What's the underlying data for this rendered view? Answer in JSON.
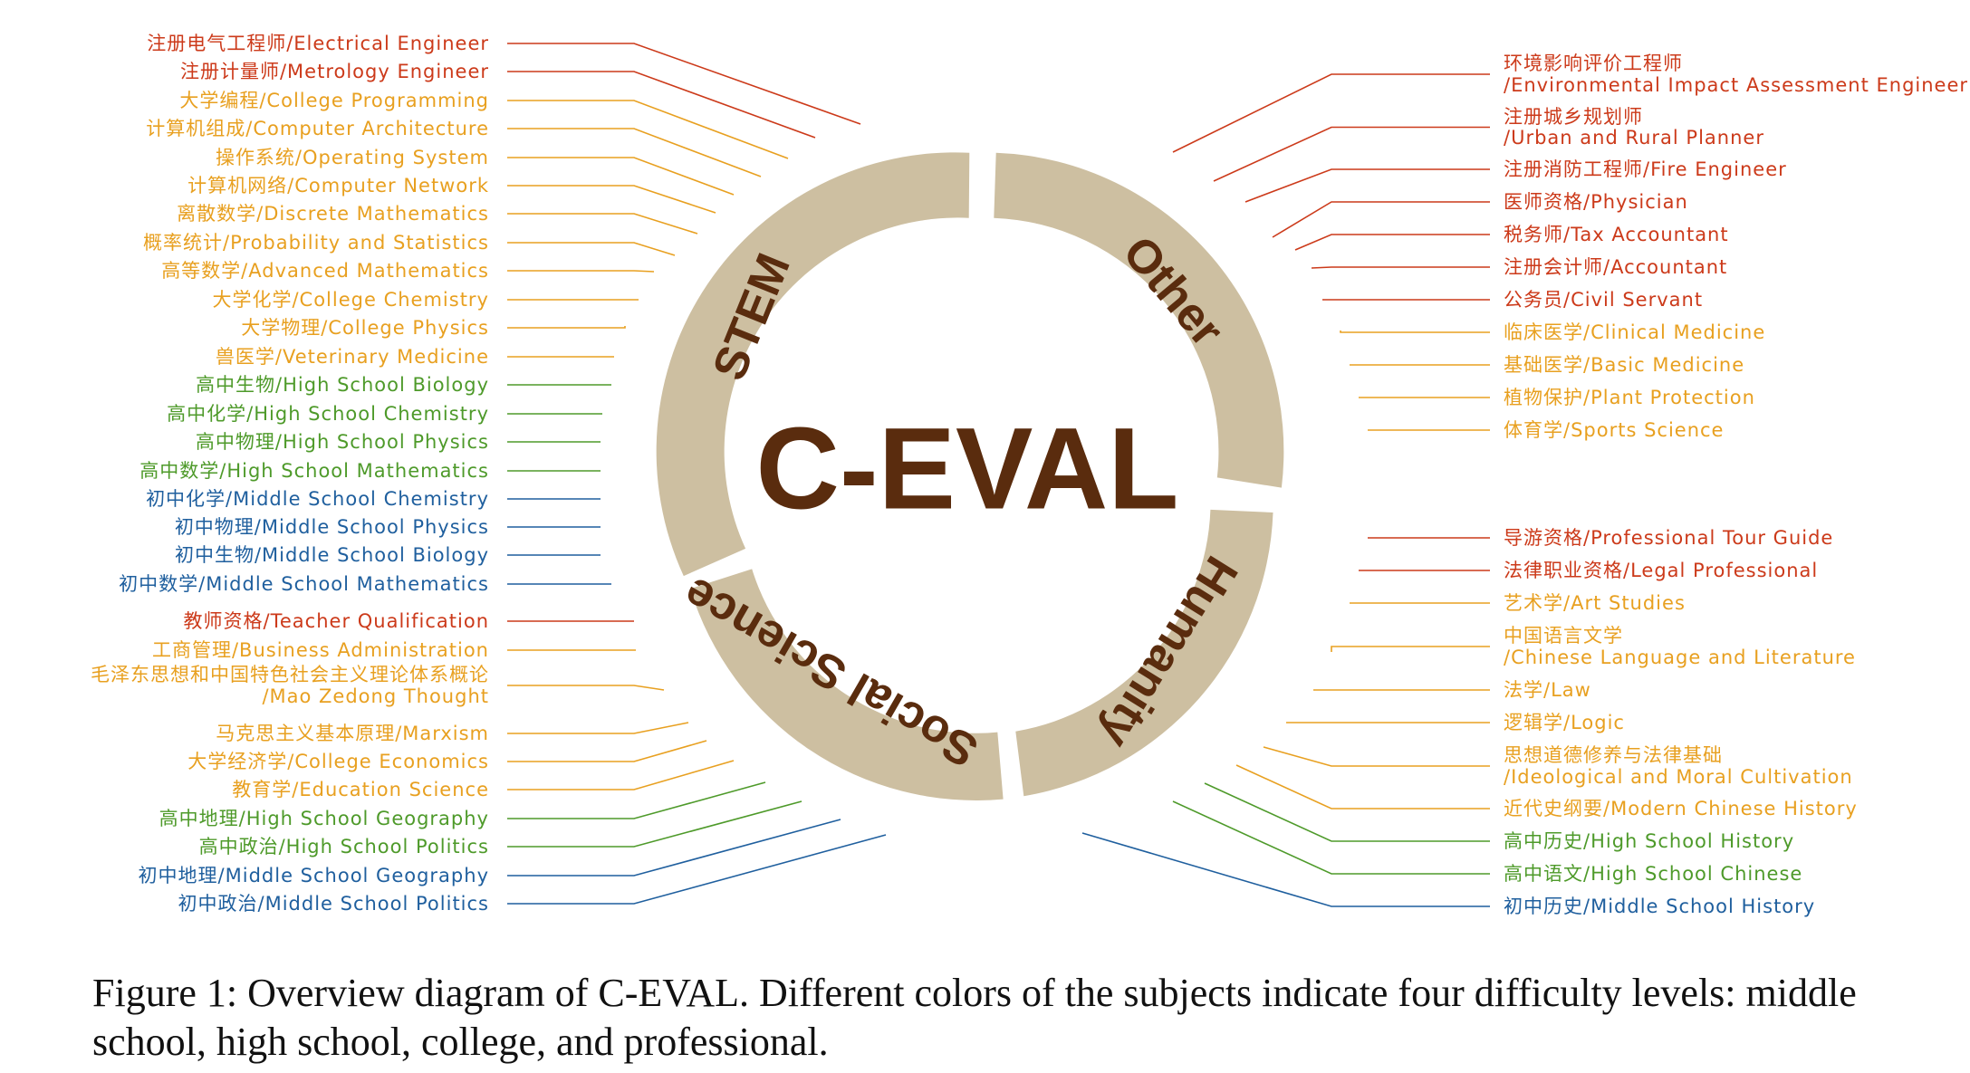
{
  "colors": {
    "professional": "#cc3a1a",
    "college": "#e8a020",
    "high_school": "#4e9a2a",
    "middle_school": "#1f5f9e",
    "ring": "#cdbfa1",
    "title": "#5a2c0e"
  },
  "diagram": {
    "title": "C-EVAL",
    "segments": [
      "STEM",
      "Other",
      "Humanity",
      "Social Science"
    ]
  },
  "subjects_left": [
    {
      "text": "注册电气工程师/Electrical Engineer",
      "level": "professional"
    },
    {
      "text": "注册计量师/Metrology Engineer",
      "level": "professional"
    },
    {
      "text": "大学编程/College Programming",
      "level": "college"
    },
    {
      "text": "计算机组成/Computer Architecture",
      "level": "college"
    },
    {
      "text": "操作系统/Operating System",
      "level": "college"
    },
    {
      "text": "计算机网络/Computer Network",
      "level": "college"
    },
    {
      "text": "离散数学/Discrete Mathematics",
      "level": "college"
    },
    {
      "text": "概率统计/Probability and Statistics",
      "level": "college"
    },
    {
      "text": "高等数学/Advanced Mathematics",
      "level": "college"
    },
    {
      "text": "大学化学/College Chemistry",
      "level": "college"
    },
    {
      "text": "大学物理/College Physics",
      "level": "college"
    },
    {
      "text": "兽医学/Veterinary Medicine",
      "level": "college"
    },
    {
      "text": "高中生物/High School Biology",
      "level": "high_school"
    },
    {
      "text": "高中化学/High School Chemistry",
      "level": "high_school"
    },
    {
      "text": "高中物理/High School Physics",
      "level": "high_school"
    },
    {
      "text": "高中数学/High School Mathematics",
      "level": "high_school"
    },
    {
      "text": "初中化学/Middle School Chemistry",
      "level": "middle_school"
    },
    {
      "text": "初中物理/Middle School Physics",
      "level": "middle_school"
    },
    {
      "text": "初中生物/Middle School Biology",
      "level": "middle_school"
    },
    {
      "text": "初中数学/Middle School Mathematics",
      "level": "middle_school"
    },
    {
      "text": "教师资格/Teacher Qualification",
      "level": "professional"
    },
    {
      "text": "工商管理/Business Administration",
      "level": "college"
    },
    {
      "text": "毛泽东思想和中国特色社会主义理论体系概论",
      "text2": "/Mao Zedong Thought",
      "level": "college"
    },
    {
      "text": "马克思主义基本原理/Marxism",
      "level": "college"
    },
    {
      "text": "大学经济学/College Economics",
      "level": "college"
    },
    {
      "text": "教育学/Education Science",
      "level": "college"
    },
    {
      "text": "高中地理/High School Geography",
      "level": "high_school"
    },
    {
      "text": "高中政治/High School Politics",
      "level": "high_school"
    },
    {
      "text": "初中地理/Middle School Geography",
      "level": "middle_school"
    },
    {
      "text": "初中政治/Middle School Politics",
      "level": "middle_school"
    }
  ],
  "subjects_right": [
    {
      "text": "环境影响评价工程师",
      "text2": "/Environmental Impact Assessment Engineer",
      "level": "professional"
    },
    {
      "text": "注册城乡规划师",
      "text2": "/Urban and Rural Planner",
      "level": "professional"
    },
    {
      "text": "注册消防工程师/Fire Engineer",
      "level": "professional"
    },
    {
      "text": "医师资格/Physician",
      "level": "professional"
    },
    {
      "text": "税务师/Tax Accountant",
      "level": "professional"
    },
    {
      "text": "注册会计师/Accountant",
      "level": "professional"
    },
    {
      "text": "公务员/Civil Servant",
      "level": "professional"
    },
    {
      "text": "临床医学/Clinical Medicine",
      "level": "college"
    },
    {
      "text": "基础医学/Basic Medicine",
      "level": "college"
    },
    {
      "text": "植物保护/Plant Protection",
      "level": "college"
    },
    {
      "text": "体育学/Sports Science",
      "level": "college"
    },
    {
      "text": "导游资格/Professional Tour Guide",
      "level": "professional"
    },
    {
      "text": "法律职业资格/Legal Professional",
      "level": "professional"
    },
    {
      "text": "艺术学/Art Studies",
      "level": "college"
    },
    {
      "text": "中国语言文学",
      "text2": "/Chinese Language and Literature",
      "level": "college"
    },
    {
      "text": "法学/Law",
      "level": "college"
    },
    {
      "text": "逻辑学/Logic",
      "level": "college"
    },
    {
      "text": "思想道德修养与法律基础",
      "text2": "/Ideological and Moral Cultivation",
      "level": "college"
    },
    {
      "text": "近代史纲要/Modern Chinese History",
      "level": "college"
    },
    {
      "text": "高中历史/High School History",
      "level": "high_school"
    },
    {
      "text": "高中语文/High School Chinese",
      "level": "high_school"
    },
    {
      "text": "初中历史/Middle School History",
      "level": "middle_school"
    }
  ],
  "caption": "Figure 1: Overview diagram of C-EVAL. Different colors of the subjects indicate four difficulty levels: middle school, high school, college, and professional."
}
